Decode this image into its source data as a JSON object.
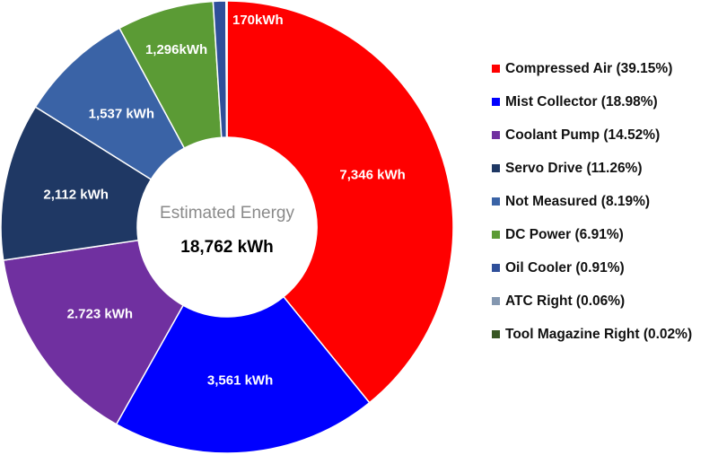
{
  "chart_data": {
    "type": "donut",
    "center_title": "Estimated Energy",
    "center_label": "18,762 kWh",
    "categories": [
      "Compressed Air (39.15%)",
      "Mist Collector (18.98%)",
      "Coolant Pump (14.52%)",
      "Servo Drive (11.26%)",
      "Not Measured (8.19%)",
      "DC Power (6.91%)",
      "Oil Cooler (0.91%)",
      "ATC Right (0.06%)",
      "Tool Magazine Right (0.02%)"
    ],
    "values": [
      7346,
      3561,
      2723,
      2112,
      1537,
      1296,
      170,
      11,
      4
    ],
    "value_labels": [
      "7,346 kWh",
      "3,561 kWh",
      "2.723 kWh",
      "2,112 kWh",
      "1,537 kWh",
      "1,296kWh",
      "170kWh",
      null,
      null
    ],
    "colors": [
      "#ff0000",
      "#0000ff",
      "#7030a0",
      "#1f3864",
      "#3a63a6",
      "#5b9b35",
      "#2f4f9a",
      "#8497b0",
      "#375623"
    ],
    "legend": "right"
  }
}
